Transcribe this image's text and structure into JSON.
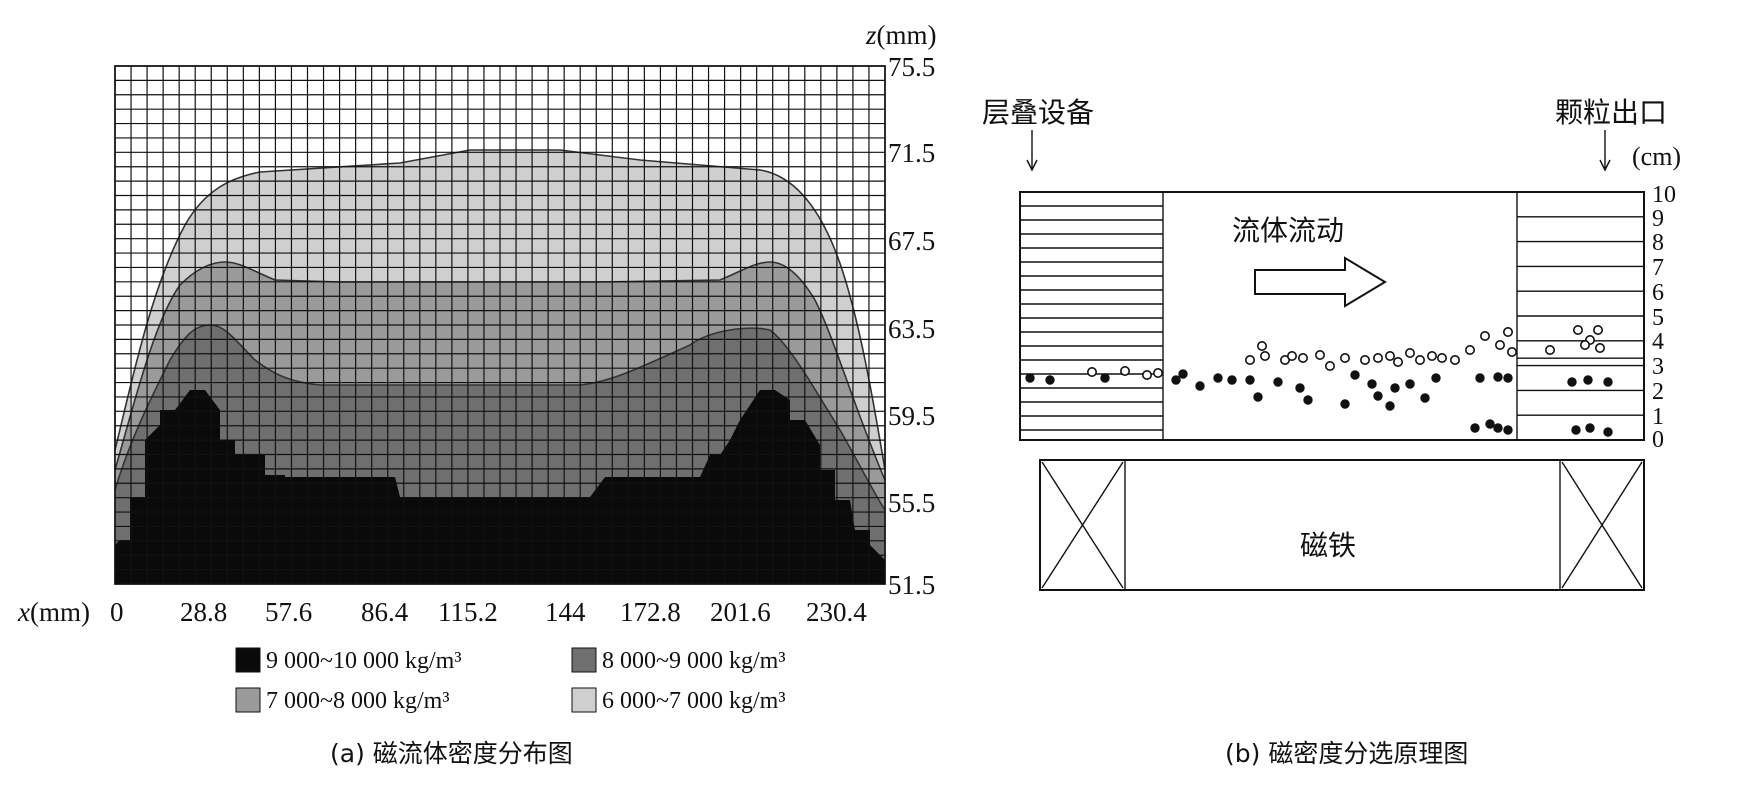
{
  "panel_a": {
    "x_axis_label_prefix": "x",
    "x_axis_label_unit": "(mm)",
    "z_axis_label_prefix": "z",
    "z_axis_label_unit": "(mm)",
    "x_ticks": [
      "0",
      "28.8",
      "57.6",
      "86.4",
      "115.2",
      "144",
      "172.8",
      "201.6",
      "230.4"
    ],
    "z_ticks": [
      "75.5",
      "71.5",
      "67.5",
      "63.5",
      "59.5",
      "55.5",
      "51.5"
    ],
    "legend": [
      {
        "label": "9 000~10 000 kg/m³",
        "color": "#0a0a0a"
      },
      {
        "label": "8 000~9 000 kg/m³",
        "color": "#6f6f6f"
      },
      {
        "label": "7 000~8 000 kg/m³",
        "color": "#9a9a9a"
      },
      {
        "label": "6 000~7 000 kg/m³",
        "color": "#cfcfcf"
      }
    ],
    "caption": "(a) 磁流体密度分布图"
  },
  "panel_b": {
    "label_left": "层叠设备",
    "label_right": "颗粒出口",
    "unit": "(cm)",
    "scale_ticks": [
      "10",
      "9",
      "8",
      "7",
      "6",
      "5",
      "4",
      "3",
      "2",
      "1",
      "0"
    ],
    "flow_label": "流体流动",
    "magnet_label": "磁铁",
    "caption": "(b) 磁密度分选原理图"
  },
  "colors": {
    "black_zone": "#0a0a0a",
    "zone_8000": "#6f6f6f",
    "zone_7000": "#9a9a9a",
    "zone_6000": "#cfcfcf",
    "grid": "#111111"
  }
}
